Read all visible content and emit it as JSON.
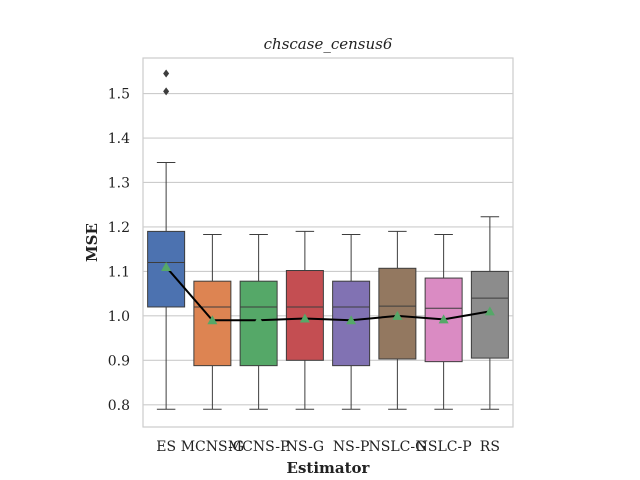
{
  "chart_data": {
    "type": "box",
    "title": "chscase_census6",
    "xlabel": "Estimator",
    "ylabel": "MSE",
    "ylim": [
      0.75,
      1.58
    ],
    "yticks": [
      0.8,
      0.9,
      1.0,
      1.1,
      1.2,
      1.3,
      1.4,
      1.5
    ],
    "ytick_labels": [
      "0.8",
      "0.9",
      "1.0",
      "1.1",
      "1.2",
      "1.3",
      "1.4",
      "1.5"
    ],
    "grid": true,
    "categories": [
      "ES",
      "MCNS-G",
      "MCNS-P",
      "NS-G",
      "NS-P",
      "NSLC-G",
      "NSLC-P",
      "RS"
    ],
    "boxes": [
      {
        "label": "ES",
        "color": "#4c72b0",
        "whislo": 0.79,
        "q1": 1.02,
        "med": 1.12,
        "q3": 1.19,
        "whishi": 1.345,
        "mean": 1.11,
        "fliers": [
          1.505,
          1.545
        ]
      },
      {
        "label": "MCNS-G",
        "color": "#dd8452",
        "whislo": 0.79,
        "q1": 0.888,
        "med": 1.02,
        "q3": 1.078,
        "whishi": 1.183,
        "mean": 0.99,
        "fliers": []
      },
      {
        "label": "MCNS-P",
        "color": "#55a868",
        "whislo": 0.79,
        "q1": 0.888,
        "med": 1.02,
        "q3": 1.078,
        "whishi": 1.183,
        "mean": 0.99,
        "fliers": []
      },
      {
        "label": "NS-G",
        "color": "#c44e52",
        "whislo": 0.79,
        "q1": 0.9,
        "med": 1.02,
        "q3": 1.102,
        "whishi": 1.19,
        "mean": 0.994,
        "fliers": []
      },
      {
        "label": "NS-P",
        "color": "#8172b3",
        "whislo": 0.79,
        "q1": 0.888,
        "med": 1.02,
        "q3": 1.078,
        "whishi": 1.183,
        "mean": 0.99,
        "fliers": []
      },
      {
        "label": "NSLC-G",
        "color": "#937860",
        "whislo": 0.79,
        "q1": 0.903,
        "med": 1.022,
        "q3": 1.107,
        "whishi": 1.19,
        "mean": 1.0,
        "fliers": []
      },
      {
        "label": "NSLC-P",
        "color": "#da8bc3",
        "whislo": 0.79,
        "q1": 0.897,
        "med": 1.017,
        "q3": 1.085,
        "whishi": 1.183,
        "mean": 0.992,
        "fliers": []
      },
      {
        "label": "RS",
        "color": "#8c8c8c",
        "whislo": 0.79,
        "q1": 0.905,
        "med": 1.04,
        "q3": 1.1,
        "whishi": 1.223,
        "mean": 1.01,
        "fliers": []
      }
    ],
    "mean_line": {
      "color": "#000000"
    },
    "mean_marker": {
      "shape": "triangle",
      "color": "#55a868"
    }
  }
}
